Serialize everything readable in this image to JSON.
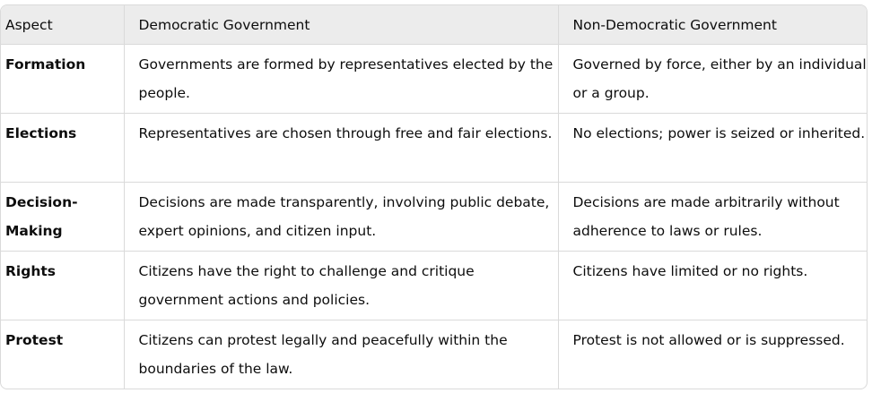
{
  "table": {
    "headers": [
      "Aspect",
      "Democratic Government",
      "Non-Democratic Government"
    ],
    "rows": [
      {
        "aspect": "Formation",
        "democratic": "Governments are formed by representatives elected by the people.",
        "non_democratic": "Governed by force, either by an individual or a group."
      },
      {
        "aspect": "Elections",
        "democratic": "Representatives are chosen through free and fair elections.",
        "non_democratic": "No elections; power is seized or inherited."
      },
      {
        "aspect": "Decision-Making",
        "democratic": "Decisions are made transparently, involving public debate, expert opinions, and citizen input.",
        "non_democratic": "Decisions are made arbitrarily without adherence to laws or rules."
      },
      {
        "aspect": "Rights",
        "democratic": "Citizens have the right to challenge and critique government actions and policies.",
        "non_democratic": "Citizens have limited or no rights."
      },
      {
        "aspect": "Protest",
        "democratic": "Citizens can protest legally and peacefully within the boundaries of the law.",
        "non_democratic": "Protest is not allowed or is suppressed."
      }
    ]
  }
}
